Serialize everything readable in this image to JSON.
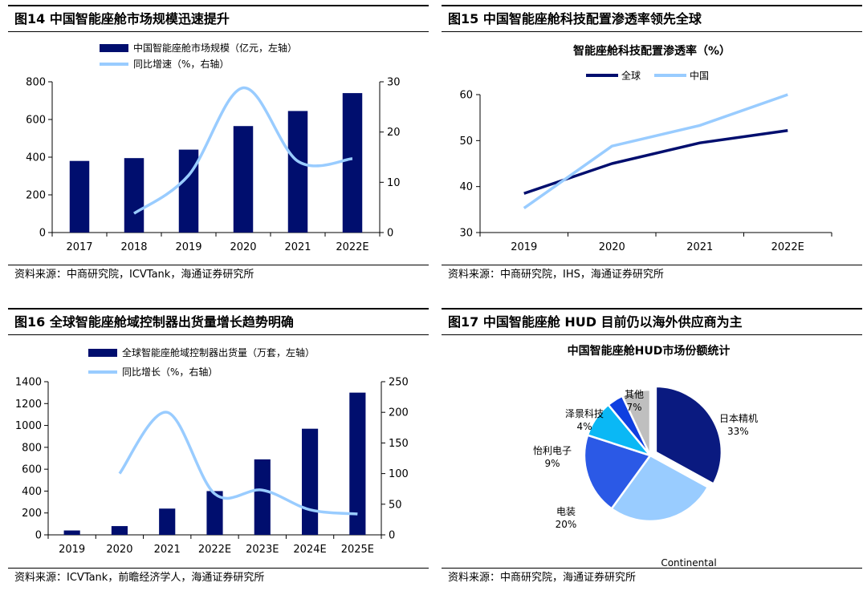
{
  "colors": {
    "navy": "#000E6E",
    "light": "#99CCFF",
    "axis": "#000000"
  },
  "charts": [
    {
      "title": "图14 中国智能座舱市场规模迅速提升",
      "source": "资料来源：中商研究院，ICVTank，海通证券研究所",
      "chart_data": {
        "type": "bar",
        "chart_title": "",
        "categories": [
          "2017",
          "2018",
          "2019",
          "2020",
          "2021",
          "2022E"
        ],
        "series": [
          {
            "name": "中国智能座舱市场规模（亿元，左轴）",
            "type": "bar",
            "axis": "left",
            "values": [
              380,
              395,
              440,
              565,
              645,
              740
            ]
          },
          {
            "name": "同比增速（%，右轴）",
            "type": "line",
            "axis": "right",
            "values": [
              null,
              3.8,
              11.4,
              28.8,
              14.2,
              14.7
            ]
          }
        ],
        "ylim_left": [
          0,
          800
        ],
        "yticks_left": [
          "0",
          "200",
          "400",
          "600",
          "800"
        ],
        "ylim_right": [
          0,
          30
        ],
        "yticks_right": [
          "0",
          "10",
          "20",
          "30"
        ],
        "legend_position": "top"
      }
    },
    {
      "title": "图15 中国智能座舱科技配置渗透率领先全球",
      "source": "资料来源：中商研究院，IHS，海通证券研究所",
      "chart_data": {
        "type": "line",
        "chart_title": "智能座舱科技配置渗透率（%）",
        "categories": [
          "2019",
          "2020",
          "2021",
          "2022E"
        ],
        "series": [
          {
            "name": "全球",
            "values": [
              38.5,
              45.0,
              49.5,
              52.2
            ]
          },
          {
            "name": "中国",
            "values": [
              35.3,
              48.8,
              53.3,
              60.0
            ]
          }
        ],
        "ylim": [
          30,
          60
        ],
        "yticks": [
          "30",
          "40",
          "50",
          "60"
        ],
        "legend_position": "top"
      }
    },
    {
      "title": "图16 全球智能座舱域控制器出货量增长趋势明确",
      "source": "资料来源：ICVTank，前瞻经济学人，海通证券研究所",
      "chart_data": {
        "type": "bar",
        "chart_title": "",
        "categories": [
          "2019",
          "2020",
          "2021",
          "2022E",
          "2023E",
          "2024E",
          "2025E"
        ],
        "series": [
          {
            "name": "全球智能座舱域控制器出货量（万套，左轴）",
            "type": "bar",
            "axis": "left",
            "values": [
              40,
              80,
              240,
              400,
              690,
              970,
              1300
            ]
          },
          {
            "name": "同比增长（%，右轴）",
            "type": "line",
            "axis": "right",
            "values": [
              null,
              100,
              200,
              67,
              73,
              41,
              34
            ]
          }
        ],
        "ylim_left": [
          0,
          1400
        ],
        "yticks_left": [
          "0",
          "200",
          "400",
          "600",
          "800",
          "1000",
          "1200",
          "1400"
        ],
        "ylim_right": [
          0,
          250
        ],
        "yticks_right": [
          "0",
          "50",
          "100",
          "150",
          "200",
          "250"
        ],
        "legend_position": "top"
      }
    },
    {
      "title": "图17 中国智能座舱 HUD 目前仍以海外供应商为主",
      "source": "资料来源：中商研究院，海通证券研究所",
      "chart_data": {
        "type": "pie",
        "chart_title": "中国智能座舱HUD市场份额统计",
        "slices": [
          {
            "label": "日本精机",
            "value": 33,
            "value_label": "33%",
            "color": "#0A1A80"
          },
          {
            "label": "Continental",
            "value": 27,
            "value_label": "27%",
            "color": "#99CCFF"
          },
          {
            "label": "电装",
            "value": 20,
            "value_label": "20%",
            "color": "#2B59E6"
          },
          {
            "label": "怡利电子",
            "value": 9,
            "value_label": "9%",
            "color": "#0AB8F5"
          },
          {
            "label": "泽景科技",
            "value": 4,
            "value_label": "4%",
            "color": "#0F3FE0"
          },
          {
            "label": "其他",
            "value": 7,
            "value_label": "7%",
            "color": "#BFBFBF"
          }
        ]
      }
    }
  ]
}
